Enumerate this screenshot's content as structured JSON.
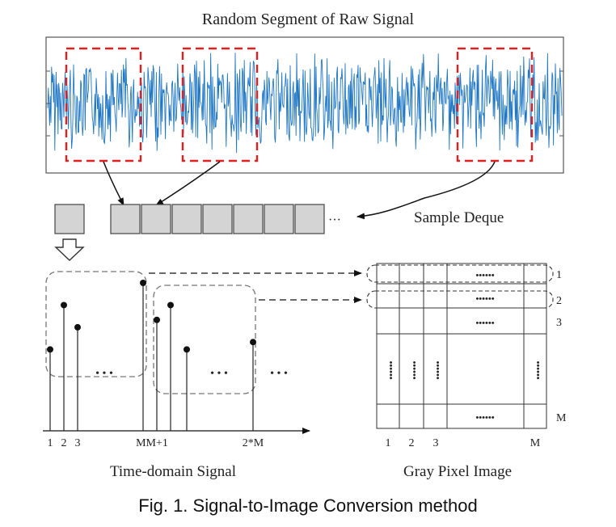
{
  "figure": {
    "signal_title": "Random Segment of Raw Signal",
    "deque_label": "Sample Deque",
    "deque_ellipsis": "···",
    "time_domain_label": "Time-domain Signal",
    "gray_image_label": "Gray Pixel Image",
    "caption": "Fig.  1. Signal-to-Image Conversion method"
  },
  "time_axis": {
    "ticks": [
      "1",
      "2",
      "3",
      "MM+1",
      "2*M"
    ],
    "ellipsis": "• • •"
  },
  "stem_values": [
    0.55,
    0.85,
    0.7,
    1.0,
    0.75,
    0.85,
    0.55,
    0.6
  ],
  "grid": {
    "col_labels": [
      "1",
      "2",
      "3",
      "M"
    ],
    "row_labels": [
      "1",
      "2",
      "3",
      "M"
    ],
    "dots_h": "••••••",
    "dots_v": "••••••"
  },
  "colors": {
    "signal": "#1f77c4",
    "highlight": "#e02020",
    "deque_fill": "#d4d4d4",
    "stroke": "#222222"
  }
}
